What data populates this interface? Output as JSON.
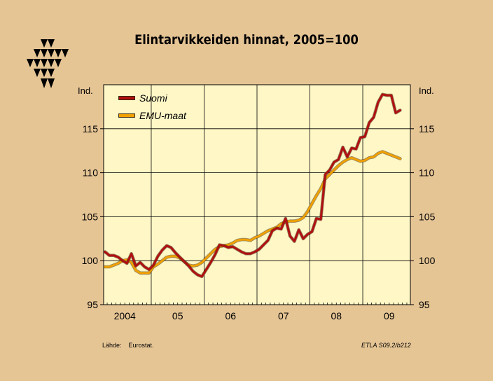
{
  "title": "Elintarvikkeiden hinnat, 2005=100",
  "source_label": "Lähde:",
  "source_value": "Eurostat.",
  "code": "ETLA S09.2/b212",
  "chart_data": {
    "type": "line",
    "title": "Elintarvikkeiden hinnat, 2005=100",
    "ylabel_left": "Ind.",
    "ylabel_right": "Ind.",
    "ylim": [
      95,
      120
    ],
    "yticks": [
      95,
      100,
      105,
      110,
      115
    ],
    "xlim": [
      2003.6,
      2009.4
    ],
    "x_ticks": [
      {
        "x": 2004,
        "label": "2004"
      },
      {
        "x": 2005,
        "label": "05"
      },
      {
        "x": 2006,
        "label": "06"
      },
      {
        "x": 2007,
        "label": "07"
      },
      {
        "x": 2008,
        "label": "08"
      },
      {
        "x": 2009,
        "label": "09"
      }
    ],
    "grid": true,
    "legend_position": "top-left",
    "colors": {
      "background": "#e6c595",
      "plot": "#fff7c6"
    },
    "series": [
      {
        "name": "Suomi",
        "color": "#b01010",
        "x_start": 2003.625,
        "step": 0.0833,
        "values": [
          101.0,
          100.6,
          100.6,
          100.4,
          100.0,
          99.7,
          100.8,
          99.4,
          99.8,
          99.3,
          99.0,
          99.5,
          100.5,
          101.2,
          101.7,
          101.5,
          100.9,
          100.4,
          99.9,
          99.4,
          98.8,
          98.4,
          98.2,
          99.0,
          99.8,
          100.7,
          101.8,
          101.7,
          101.5,
          101.6,
          101.3,
          101.0,
          100.8,
          100.8,
          101.0,
          101.3,
          101.8,
          102.3,
          103.4,
          103.7,
          103.6,
          104.8,
          102.8,
          102.2,
          103.5,
          102.5,
          103.0,
          103.3,
          104.8,
          104.7,
          109.8,
          110.3,
          111.2,
          111.5,
          112.9,
          111.8,
          112.8,
          112.7,
          114.0,
          114.1,
          115.7,
          116.3,
          118.0,
          118.9,
          118.8,
          118.8,
          116.8,
          117.1
        ]
      },
      {
        "name": "EMU-maat",
        "color": "#f0a000",
        "x_start": 2003.625,
        "step": 0.0833,
        "values": [
          99.3,
          99.3,
          99.5,
          99.7,
          100.0,
          100.1,
          99.8,
          98.9,
          98.6,
          98.6,
          98.6,
          99.3,
          99.6,
          100.0,
          100.4,
          100.5,
          100.5,
          100.3,
          99.9,
          99.5,
          99.4,
          99.5,
          99.8,
          100.3,
          100.8,
          101.3,
          101.6,
          101.7,
          101.8,
          102.0,
          102.3,
          102.4,
          102.4,
          102.3,
          102.6,
          102.8,
          103.1,
          103.4,
          103.6,
          103.8,
          104.2,
          104.4,
          104.5,
          104.5,
          104.6,
          104.9,
          105.6,
          106.5,
          107.4,
          108.2,
          109.3,
          109.8,
          110.3,
          110.8,
          111.2,
          111.5,
          111.7,
          111.5,
          111.3,
          111.4,
          111.7,
          111.8,
          112.2,
          112.4,
          112.2,
          112.0,
          111.8,
          111.6
        ]
      }
    ]
  }
}
